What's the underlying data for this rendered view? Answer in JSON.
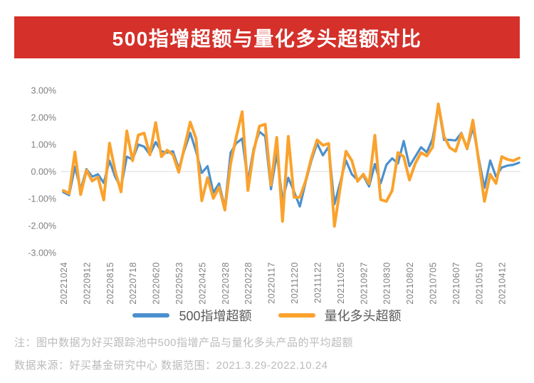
{
  "title": "500指增超额与量化多头超额对比",
  "theme": {
    "banner_color": "#D5302A",
    "title_color": "#FFFFFF",
    "background": "#FFFFFF",
    "axis_text_color": "#7F7F7F",
    "legend_text_color": "#595959",
    "footer_text_color": "#BBBBBB",
    "gridline_color": "#DADADA"
  },
  "legend": [
    {
      "label": "500指增超额",
      "color": "#4B90CE"
    },
    {
      "label": "量化多头超额",
      "color": "#FAA22D"
    }
  ],
  "footer": {
    "note": "注：图中数据为好买跟踪池中500指增产品与量化多头产品的平均超额",
    "source": "数据来源：好买基金研究中心  数据范围：2021.3.29-2022.10.24"
  },
  "chart_data": {
    "type": "line",
    "title": "500指增超额与量化多头超额对比",
    "xlabel": "",
    "ylabel": "",
    "ylim": [
      -3,
      3
    ],
    "grid": "zero-line-only",
    "legend_position": "bottom",
    "y_ticks": [
      "3.00%",
      "2.00%",
      "1.00%",
      "0.00%",
      "-1.00%",
      "-2.00%",
      "-3.00%"
    ],
    "y_tick_values": [
      3,
      2,
      1,
      0,
      -1,
      -2,
      -3
    ],
    "x_tick_labels": [
      "20221024",
      "20220912",
      "20220815",
      "20220718",
      "20220620",
      "20220523",
      "20220425",
      "20220328",
      "20220228",
      "20220117",
      "20211220",
      "20211122",
      "20211025",
      "20210927",
      "20210830",
      "20210802",
      "20210705",
      "20210607",
      "20210510",
      "20210412"
    ],
    "x_tick_every": 4,
    "num_points": 80,
    "x_order": "newest-to-oldest",
    "unit": "percent",
    "series": [
      {
        "name": "500指增超额",
        "color": "#4B90CE",
        "values": [
          -0.76,
          -0.87,
          0.18,
          -0.66,
          0.09,
          -0.19,
          -0.1,
          -0.42,
          0.4,
          -0.2,
          -0.6,
          0.55,
          0.45,
          1.0,
          0.92,
          0.63,
          1.09,
          0.75,
          0.7,
          0.75,
          0.11,
          0.8,
          1.43,
          0.75,
          -0.05,
          0.2,
          -0.78,
          -0.44,
          -1.33,
          0.7,
          1.05,
          1.22,
          -0.36,
          0.85,
          1.47,
          1.3,
          -0.65,
          0.66,
          -1.05,
          -0.23,
          -0.74,
          -1.29,
          -0.4,
          0.4,
          1.04,
          0.6,
          0.92,
          -1.21,
          -0.4,
          0.41,
          -0.1,
          -0.31,
          -0.15,
          -0.55,
          0.28,
          -0.44,
          0.25,
          0.49,
          0.3,
          1.13,
          0.2,
          0.55,
          0.9,
          0.71,
          1.2,
          2.42,
          1.17,
          1.17,
          1.15,
          1.43,
          0.83,
          1.64,
          0.5,
          -0.6,
          0.41,
          -0.19,
          0.15,
          0.22,
          0.25,
          0.33
        ]
      },
      {
        "name": "量化多头超额",
        "color": "#FAA22D",
        "values": [
          -0.7,
          -0.81,
          0.72,
          -0.85,
          0.05,
          -0.35,
          -0.2,
          -1.05,
          1.05,
          0.0,
          -0.75,
          1.5,
          0.4,
          1.35,
          1.42,
          0.62,
          1.81,
          0.55,
          0.79,
          0.62,
          -0.02,
          0.9,
          1.83,
          1.22,
          -1.08,
          -0.23,
          -0.99,
          -0.57,
          -1.42,
          0.3,
          1.3,
          2.21,
          -0.7,
          0.75,
          1.68,
          1.75,
          -0.5,
          1.26,
          -1.84,
          1.3,
          -0.95,
          -0.95,
          -0.35,
          0.5,
          1.17,
          0.97,
          1.04,
          -2.02,
          -0.6,
          0.75,
          0.41,
          -0.36,
          -0.1,
          -0.45,
          1.34,
          -1.04,
          -1.1,
          -0.7,
          0.7,
          0.55,
          -0.31,
          0.3,
          0.7,
          0.58,
          0.9,
          2.5,
          1.3,
          0.88,
          0.75,
          1.4,
          0.85,
          1.9,
          0.4,
          -1.1,
          -0.1,
          -0.44,
          0.55,
          0.45,
          0.4,
          0.5
        ]
      }
    ]
  }
}
